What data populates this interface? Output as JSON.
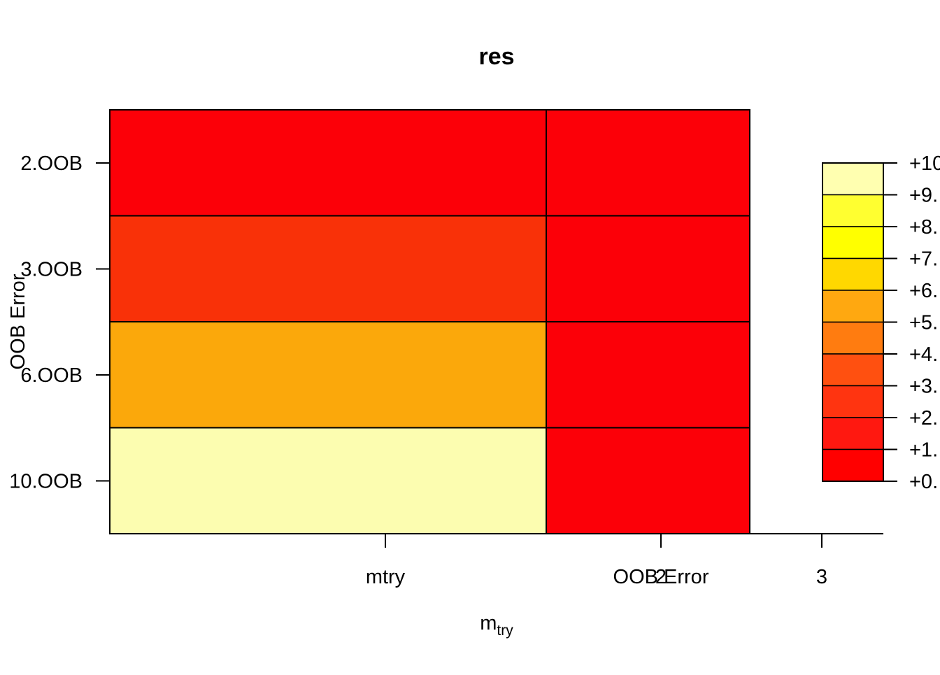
{
  "chart_data": {
    "type": "heatmap",
    "title": "res",
    "xlabel": "m",
    "xlabel_sub": "try",
    "ylabel": "OOB Error",
    "columns": [
      "mtry",
      "OOB Error"
    ],
    "rows": [
      "2.OOB",
      "3.OOB",
      "6.OOB",
      "10.OOB"
    ],
    "cells": [
      {
        "row": "2.OOB",
        "col": "mtry",
        "value": 0.5
      },
      {
        "row": "2.OOB",
        "col": "OOB Error",
        "value": 0.5
      },
      {
        "row": "3.OOB",
        "col": "mtry",
        "value": 2.5
      },
      {
        "row": "3.OOB",
        "col": "OOB Error",
        "value": 0.5
      },
      {
        "row": "6.OOB",
        "col": "mtry",
        "value": 5.5
      },
      {
        "row": "6.OOB",
        "col": "OOB Error",
        "value": 0.5
      },
      {
        "row": "10.OOB",
        "col": "mtry",
        "value": 9.5
      },
      {
        "row": "10.OOB",
        "col": "OOB Error",
        "value": 0.5
      }
    ],
    "x_ticks": [
      "2",
      "3"
    ],
    "legend": {
      "placement": "right",
      "labels": [
        "+10",
        "+9.",
        "+8.",
        "+7.",
        "+6.",
        "+5.",
        "+4.",
        "+3.",
        "+2.",
        "+1.",
        "+0."
      ],
      "colors": [
        "#FFFFB0",
        "#FFFF30",
        "#FFFF00",
        "#FFD800",
        "#FFA810",
        "#FF7C10",
        "#FF5010",
        "#FF3410",
        "#FF1810",
        "#FF0000"
      ]
    },
    "colors": {
      "0.5": "#FC0008",
      "2.5": "#F93108",
      "5.5": "#FBA80B",
      "9.5": "#FCFDB0"
    }
  }
}
